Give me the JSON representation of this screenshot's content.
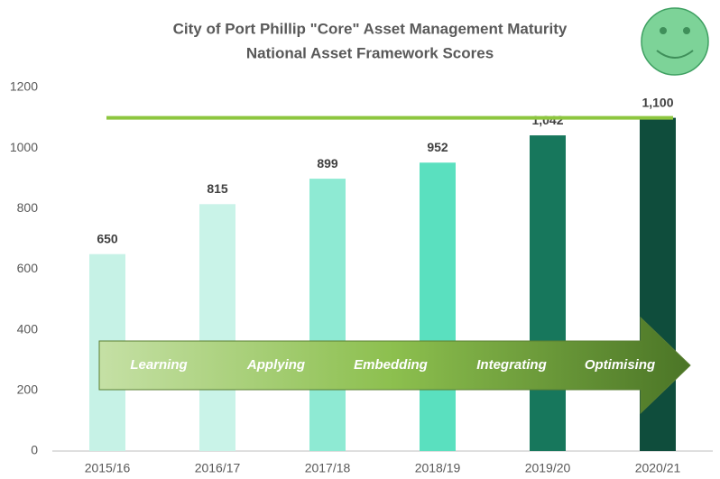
{
  "chart_data": {
    "type": "bar",
    "title": "City of Port Phillip \"Core\" Asset Management Maturity",
    "subtitle": "National Asset Framework Scores",
    "categories": [
      "2015/16",
      "2016/17",
      "2017/18",
      "2018/19",
      "2019/20",
      "2020/21"
    ],
    "values": [
      650,
      815,
      899,
      952,
      1042,
      1100
    ],
    "value_labels": [
      "650",
      "815",
      "899",
      "952",
      "1,042",
      "1,100"
    ],
    "colors": [
      "#c6f2e6",
      "#c9f3e8",
      "#8eead3",
      "#5ae0bf",
      "#17775c",
      "#0f4d3c"
    ],
    "ylim": [
      0,
      1200
    ],
    "yticks": [
      0,
      200,
      400,
      600,
      800,
      1000,
      1200
    ],
    "reference_line": {
      "value": 1100,
      "color": "#8dc63f"
    },
    "stages": [
      "Learning",
      "Applying",
      "Embedding",
      "Integrating",
      "Optimising"
    ],
    "grid": false
  }
}
